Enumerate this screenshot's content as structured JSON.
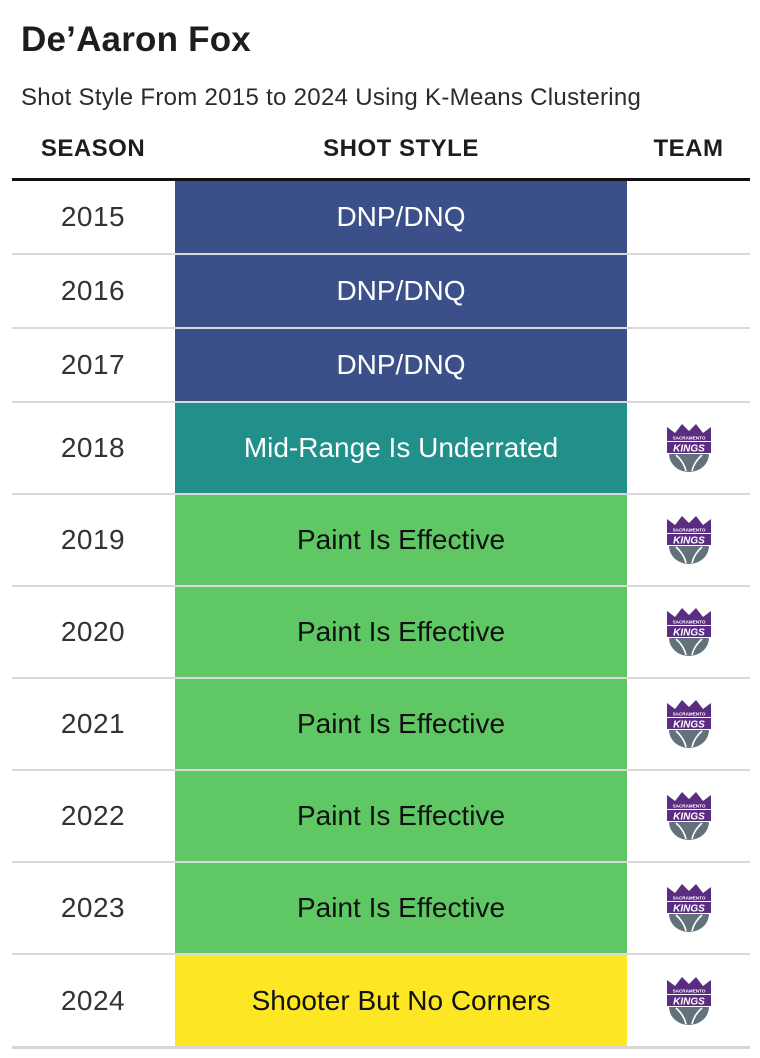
{
  "title": "De’Aaron Fox",
  "subtitle": "Shot Style From 2015 to 2024 Using K-Means Clustering",
  "headers": {
    "season": "SEASON",
    "shot_style": "SHOT STYLE",
    "team": "TEAM"
  },
  "style_colors": {
    "DNP/DNQ": "#3b5088",
    "Mid-Range Is Underrated": "#22908a",
    "Paint Is Effective": "#5fc865",
    "Shooter But No Corners": "#fde725"
  },
  "style_text_colors": {
    "DNP/DNQ": "#ffffff",
    "Mid-Range Is Underrated": "#ffffff",
    "Paint Is Effective": "#111111",
    "Shooter But No Corners": "#111111"
  },
  "team_logo": {
    "icon": "sacramento-kings-logo",
    "text_top": "SACRAMENTO",
    "text_main": "KINGS",
    "purple": "#5a2d81",
    "gray": "#63727a"
  },
  "chart_data": {
    "type": "table",
    "title": "De’Aaron Fox",
    "subtitle": "Shot Style From 2015 to 2024 Using K-Means Clustering",
    "columns": [
      "SEASON",
      "SHOT STYLE",
      "TEAM"
    ],
    "rows": [
      {
        "season": "2015",
        "shot_style": "DNP/DNQ",
        "team": ""
      },
      {
        "season": "2016",
        "shot_style": "DNP/DNQ",
        "team": ""
      },
      {
        "season": "2017",
        "shot_style": "DNP/DNQ",
        "team": ""
      },
      {
        "season": "2018",
        "shot_style": "Mid-Range Is Underrated",
        "team": "sacramento-kings-logo"
      },
      {
        "season": "2019",
        "shot_style": "Paint Is Effective",
        "team": "sacramento-kings-logo"
      },
      {
        "season": "2020",
        "shot_style": "Paint Is Effective",
        "team": "sacramento-kings-logo"
      },
      {
        "season": "2021",
        "shot_style": "Paint Is Effective",
        "team": "sacramento-kings-logo"
      },
      {
        "season": "2022",
        "shot_style": "Paint Is Effective",
        "team": "sacramento-kings-logo"
      },
      {
        "season": "2023",
        "shot_style": "Paint Is Effective",
        "team": "sacramento-kings-logo"
      },
      {
        "season": "2024",
        "shot_style": "Shooter But No Corners",
        "team": "sacramento-kings-logo"
      }
    ]
  }
}
